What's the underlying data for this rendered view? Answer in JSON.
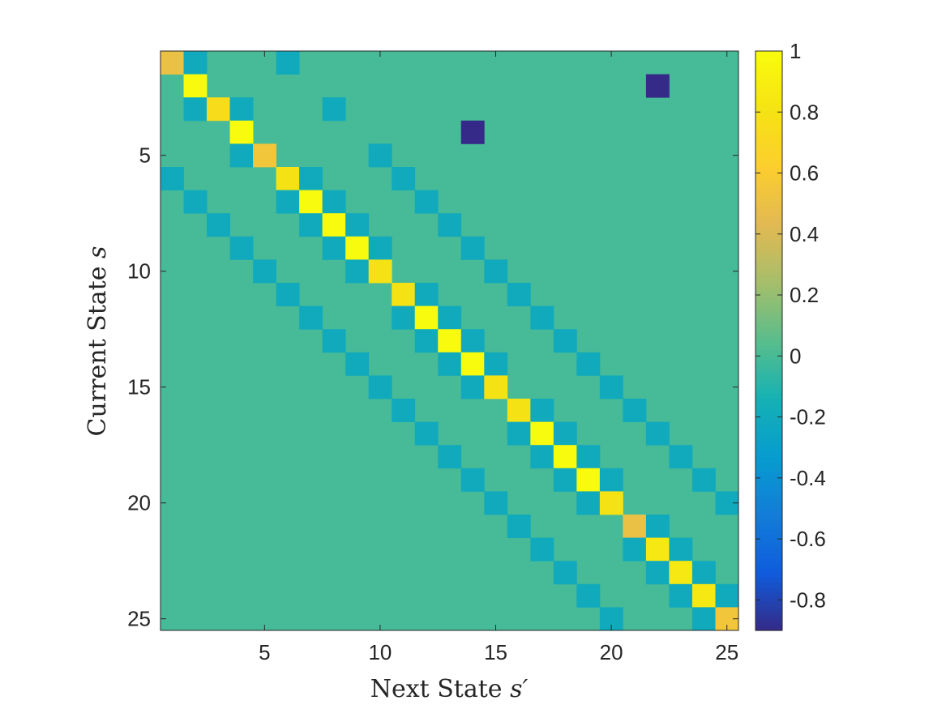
{
  "chart_data": {
    "type": "heatmap",
    "xlabel": "Next State",
    "xlabel_symbol": "s′",
    "ylabel": "Current State",
    "ylabel_symbol": "s",
    "x_ticks": [
      "5",
      "10",
      "15",
      "20",
      "25"
    ],
    "y_ticks": [
      "5",
      "10",
      "15",
      "20",
      "25"
    ],
    "x_tick_values": [
      5,
      10,
      15,
      20,
      25
    ],
    "y_tick_values": [
      5,
      10,
      15,
      20,
      25
    ],
    "n_rows": 25,
    "n_cols": 25,
    "y_direction": "reversed",
    "colorbar": {
      "range": [
        -0.9,
        1.0
      ],
      "ticks": [
        "1",
        "0.8",
        "0.6",
        "0.4",
        "0.2",
        "0",
        "-0.2",
        "-0.4",
        "-0.6",
        "-0.8"
      ],
      "tick_values": [
        1,
        0.8,
        0.6,
        0.4,
        0.2,
        0,
        -0.2,
        -0.4,
        -0.6,
        -0.8
      ],
      "colormap": "parula"
    },
    "background_value": 0,
    "cells": [
      [
        1,
        1,
        0.5
      ],
      [
        1,
        2,
        -0.2
      ],
      [
        1,
        6,
        -0.2
      ],
      [
        2,
        2,
        1.0
      ],
      [
        2,
        22,
        -0.9
      ],
      [
        3,
        2,
        -0.2
      ],
      [
        3,
        3,
        0.75
      ],
      [
        3,
        4,
        -0.2
      ],
      [
        3,
        8,
        -0.2
      ],
      [
        4,
        4,
        1.0
      ],
      [
        4,
        14,
        -0.9
      ],
      [
        5,
        4,
        -0.2
      ],
      [
        5,
        5,
        0.55
      ],
      [
        5,
        10,
        -0.2
      ],
      [
        6,
        1,
        -0.2
      ],
      [
        6,
        6,
        0.8
      ],
      [
        6,
        7,
        -0.2
      ],
      [
        6,
        11,
        -0.2
      ],
      [
        7,
        2,
        -0.2
      ],
      [
        7,
        6,
        -0.2
      ],
      [
        7,
        7,
        1.0
      ],
      [
        7,
        8,
        -0.2
      ],
      [
        7,
        12,
        -0.2
      ],
      [
        8,
        3,
        -0.2
      ],
      [
        8,
        7,
        -0.2
      ],
      [
        8,
        8,
        1.0
      ],
      [
        8,
        9,
        -0.2
      ],
      [
        8,
        13,
        -0.2
      ],
      [
        9,
        4,
        -0.2
      ],
      [
        9,
        8,
        -0.2
      ],
      [
        9,
        9,
        1.0
      ],
      [
        9,
        10,
        -0.2
      ],
      [
        9,
        14,
        -0.2
      ],
      [
        10,
        5,
        -0.2
      ],
      [
        10,
        9,
        -0.2
      ],
      [
        10,
        10,
        0.8
      ],
      [
        10,
        15,
        -0.2
      ],
      [
        11,
        6,
        -0.2
      ],
      [
        11,
        11,
        0.8
      ],
      [
        11,
        12,
        -0.2
      ],
      [
        11,
        16,
        -0.2
      ],
      [
        12,
        7,
        -0.2
      ],
      [
        12,
        11,
        -0.2
      ],
      [
        12,
        12,
        1.0
      ],
      [
        12,
        13,
        -0.2
      ],
      [
        12,
        17,
        -0.2
      ],
      [
        13,
        8,
        -0.2
      ],
      [
        13,
        12,
        -0.2
      ],
      [
        13,
        13,
        1.0
      ],
      [
        13,
        14,
        -0.2
      ],
      [
        13,
        18,
        -0.2
      ],
      [
        14,
        9,
        -0.2
      ],
      [
        14,
        13,
        -0.2
      ],
      [
        14,
        14,
        1.0
      ],
      [
        14,
        15,
        -0.2
      ],
      [
        14,
        19,
        -0.2
      ],
      [
        15,
        10,
        -0.2
      ],
      [
        15,
        14,
        -0.2
      ],
      [
        15,
        15,
        0.8
      ],
      [
        15,
        20,
        -0.2
      ],
      [
        16,
        11,
        -0.2
      ],
      [
        16,
        16,
        0.8
      ],
      [
        16,
        17,
        -0.2
      ],
      [
        16,
        21,
        -0.2
      ],
      [
        17,
        12,
        -0.2
      ],
      [
        17,
        16,
        -0.2
      ],
      [
        17,
        17,
        1.0
      ],
      [
        17,
        18,
        -0.2
      ],
      [
        17,
        22,
        -0.2
      ],
      [
        18,
        13,
        -0.2
      ],
      [
        18,
        17,
        -0.2
      ],
      [
        18,
        18,
        1.0
      ],
      [
        18,
        19,
        -0.2
      ],
      [
        18,
        23,
        -0.2
      ],
      [
        19,
        14,
        -0.2
      ],
      [
        19,
        18,
        -0.2
      ],
      [
        19,
        19,
        1.0
      ],
      [
        19,
        20,
        -0.2
      ],
      [
        19,
        24,
        -0.2
      ],
      [
        20,
        15,
        -0.2
      ],
      [
        20,
        19,
        -0.2
      ],
      [
        20,
        20,
        0.8
      ],
      [
        20,
        25,
        -0.2
      ],
      [
        21,
        16,
        -0.2
      ],
      [
        21,
        21,
        0.5
      ],
      [
        21,
        22,
        -0.2
      ],
      [
        22,
        17,
        -0.2
      ],
      [
        22,
        21,
        -0.2
      ],
      [
        22,
        22,
        0.85
      ],
      [
        22,
        23,
        -0.2
      ],
      [
        23,
        18,
        -0.2
      ],
      [
        23,
        22,
        -0.2
      ],
      [
        23,
        23,
        0.85
      ],
      [
        23,
        24,
        -0.2
      ],
      [
        24,
        19,
        -0.2
      ],
      [
        24,
        23,
        -0.2
      ],
      [
        24,
        24,
        0.85
      ],
      [
        24,
        25,
        -0.2
      ],
      [
        25,
        20,
        -0.2
      ],
      [
        25,
        24,
        -0.2
      ],
      [
        25,
        25,
        0.55
      ]
    ]
  }
}
